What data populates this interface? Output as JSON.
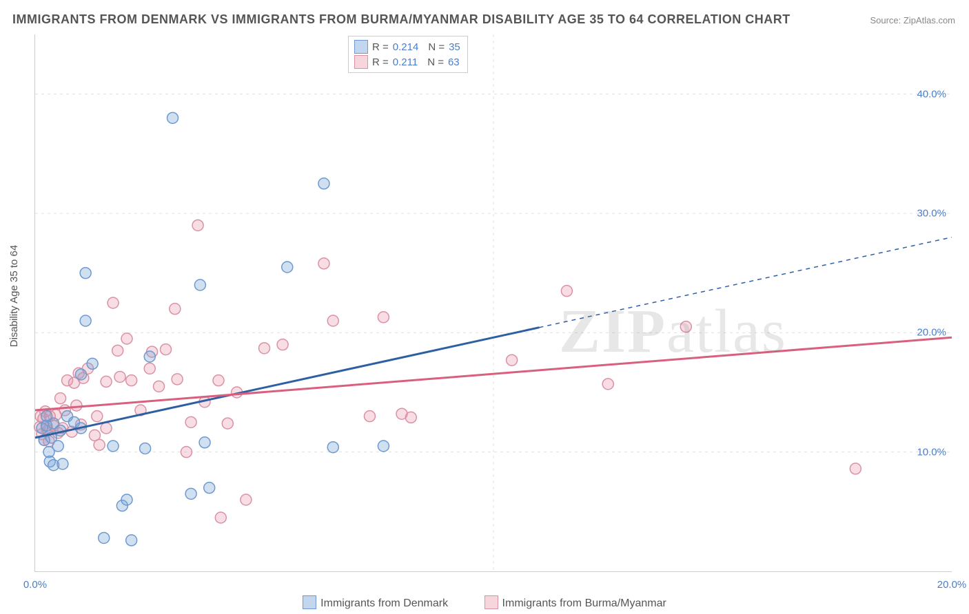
{
  "title": "IMMIGRANTS FROM DENMARK VS IMMIGRANTS FROM BURMA/MYANMAR DISABILITY AGE 35 TO 64 CORRELATION CHART",
  "source": "Source: ZipAtlas.com",
  "ylabel": "Disability Age 35 to 64",
  "watermark_bold": "ZIP",
  "watermark_light": "atlas",
  "chart": {
    "type": "scatter",
    "xlim": [
      0,
      20
    ],
    "ylim": [
      0,
      45
    ],
    "xtick_labels": [
      "0.0%",
      "20.0%"
    ],
    "xtick_vals": [
      0,
      20
    ],
    "ytick_labels": [
      "10.0%",
      "20.0%",
      "30.0%",
      "40.0%"
    ],
    "ytick_vals": [
      10,
      20,
      30,
      40
    ],
    "grid_color": "#e0e0e0",
    "background_color": "#ffffff",
    "axis_color": "#cccccc",
    "tick_label_color": "#4a7ec9",
    "marker_radius": 8,
    "marker_stroke_width": 1.5,
    "series": [
      {
        "name": "Immigrants from Denmark",
        "color_fill": "rgba(120,165,216,0.35)",
        "color_stroke": "#6d99cf",
        "line_color": "#2e5fa3",
        "line_width": 3,
        "line_dash_extend": "6 6",
        "R": "0.214",
        "N": "35",
        "fit": {
          "x1": 0,
          "y1": 11.2,
          "x2": 20,
          "y2": 28.0,
          "solid_until_frac": 0.55
        },
        "points": [
          [
            0.15,
            12.0
          ],
          [
            0.2,
            11.0
          ],
          [
            0.25,
            13.0
          ],
          [
            0.25,
            12.2
          ],
          [
            0.3,
            10.0
          ],
          [
            0.32,
            9.2
          ],
          [
            0.35,
            11.2
          ],
          [
            0.4,
            12.4
          ],
          [
            0.4,
            8.9
          ],
          [
            0.5,
            10.5
          ],
          [
            0.55,
            11.8
          ],
          [
            0.6,
            9.0
          ],
          [
            0.7,
            13.0
          ],
          [
            0.85,
            12.5
          ],
          [
            1.0,
            16.5
          ],
          [
            1.0,
            12.0
          ],
          [
            1.1,
            25.0
          ],
          [
            1.1,
            21.0
          ],
          [
            1.25,
            17.4
          ],
          [
            1.5,
            2.8
          ],
          [
            1.7,
            10.5
          ],
          [
            1.9,
            5.5
          ],
          [
            2.0,
            6.0
          ],
          [
            2.1,
            2.6
          ],
          [
            2.4,
            10.3
          ],
          [
            2.5,
            18.0
          ],
          [
            3.0,
            38.0
          ],
          [
            3.4,
            6.5
          ],
          [
            3.6,
            24.0
          ],
          [
            3.7,
            10.8
          ],
          [
            3.8,
            7.0
          ],
          [
            5.5,
            25.5
          ],
          [
            6.3,
            32.5
          ],
          [
            6.5,
            10.4
          ],
          [
            7.6,
            10.5
          ]
        ]
      },
      {
        "name": "Immigrants from Burma/Myanmar",
        "color_fill": "rgba(235,150,170,0.32)",
        "color_stroke": "#d892a3",
        "line_color": "#d85f7e",
        "line_width": 3,
        "line_dash_extend": null,
        "R": "0.211",
        "N": "63",
        "fit": {
          "x1": 0,
          "y1": 13.5,
          "x2": 20,
          "y2": 19.6
        },
        "points": [
          [
            0.1,
            12.1
          ],
          [
            0.12,
            13.0
          ],
          [
            0.15,
            11.5
          ],
          [
            0.18,
            12.8
          ],
          [
            0.2,
            11.0
          ],
          [
            0.22,
            13.4
          ],
          [
            0.25,
            12.0
          ],
          [
            0.28,
            11.8
          ],
          [
            0.3,
            10.9
          ],
          [
            0.32,
            13.0
          ],
          [
            0.4,
            12.2
          ],
          [
            0.45,
            13.1
          ],
          [
            0.5,
            11.6
          ],
          [
            0.55,
            14.5
          ],
          [
            0.6,
            12.0
          ],
          [
            0.65,
            13.5
          ],
          [
            0.7,
            16.0
          ],
          [
            0.8,
            11.7
          ],
          [
            0.85,
            15.8
          ],
          [
            0.9,
            13.9
          ],
          [
            0.95,
            16.6
          ],
          [
            1.0,
            12.3
          ],
          [
            1.05,
            16.2
          ],
          [
            1.15,
            17.0
          ],
          [
            1.3,
            11.4
          ],
          [
            1.35,
            13.0
          ],
          [
            1.4,
            10.6
          ],
          [
            1.55,
            15.9
          ],
          [
            1.55,
            12.0
          ],
          [
            1.7,
            22.5
          ],
          [
            1.8,
            18.5
          ],
          [
            1.85,
            16.3
          ],
          [
            2.0,
            19.5
          ],
          [
            2.1,
            16.0
          ],
          [
            2.3,
            13.5
          ],
          [
            2.5,
            17.0
          ],
          [
            2.55,
            18.4
          ],
          [
            2.7,
            15.5
          ],
          [
            2.85,
            18.6
          ],
          [
            3.05,
            22.0
          ],
          [
            3.1,
            16.1
          ],
          [
            3.3,
            10.0
          ],
          [
            3.4,
            12.5
          ],
          [
            3.55,
            29.0
          ],
          [
            3.7,
            14.2
          ],
          [
            4.0,
            16.0
          ],
          [
            4.05,
            4.5
          ],
          [
            4.2,
            12.4
          ],
          [
            4.4,
            15.0
          ],
          [
            4.6,
            6.0
          ],
          [
            5.0,
            18.7
          ],
          [
            5.4,
            19.0
          ],
          [
            6.3,
            25.8
          ],
          [
            6.5,
            21.0
          ],
          [
            7.3,
            13.0
          ],
          [
            7.6,
            21.3
          ],
          [
            8.0,
            13.2
          ],
          [
            8.2,
            12.9
          ],
          [
            10.4,
            17.7
          ],
          [
            11.6,
            23.5
          ],
          [
            12.5,
            15.7
          ],
          [
            14.2,
            20.5
          ],
          [
            17.9,
            8.6
          ]
        ]
      }
    ]
  },
  "legend_bottom": [
    {
      "label": "Immigrants from Denmark",
      "series_idx": 0
    },
    {
      "label": "Immigrants from Burma/Myanmar",
      "series_idx": 1
    }
  ]
}
